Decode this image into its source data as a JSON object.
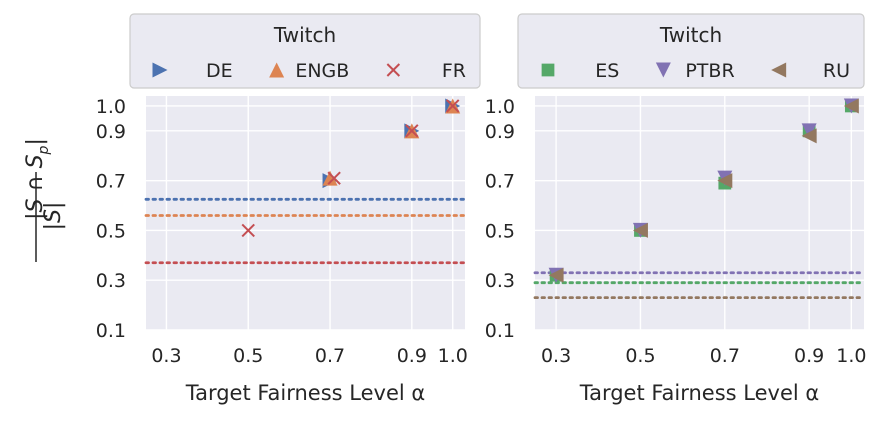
{
  "figure": {
    "ylabel_num": "|S ∩ S",
    "ylabel_sub": "p",
    "ylabel_num_end": "|",
    "ylabel_den": "|S|"
  },
  "chart_data": [
    {
      "type": "scatter",
      "legend_title": "Twitch",
      "legend_position": "top",
      "xlabel": "Target Fairness Level α",
      "xlim": [
        0.25,
        1.03
      ],
      "ylim": [
        0.1,
        1.04
      ],
      "xticks": [
        "0.3",
        "0.5",
        "0.7",
        "0.9",
        "1.0"
      ],
      "yticks": [
        "0.1",
        "0.3",
        "0.5",
        "0.7",
        "0.9",
        "1.0"
      ],
      "grid": true,
      "series": [
        {
          "name": "DE",
          "marker": "triangle-right",
          "color": "#4c72b0",
          "points": [
            {
              "x": 0.7,
              "y": 0.7
            },
            {
              "x": 0.9,
              "y": 0.9
            },
            {
              "x": 1.0,
              "y": 1.0
            }
          ],
          "baseline": 0.625
        },
        {
          "name": "ENGB",
          "marker": "triangle-up",
          "color": "#dd8452",
          "points": [
            {
              "x": 0.7,
              "y": 0.71
            },
            {
              "x": 0.9,
              "y": 0.9
            },
            {
              "x": 1.0,
              "y": 1.0
            }
          ],
          "baseline": 0.56
        },
        {
          "name": "FR",
          "marker": "x",
          "color": "#c44e52",
          "points": [
            {
              "x": 0.5,
              "y": 0.5
            },
            {
              "x": 0.71,
              "y": 0.71
            },
            {
              "x": 0.9,
              "y": 0.9
            },
            {
              "x": 1.0,
              "y": 1.0
            }
          ],
          "baseline": 0.37
        }
      ]
    },
    {
      "type": "scatter",
      "legend_title": "Twitch",
      "legend_position": "top",
      "xlabel": "Target Fairness Level α",
      "xlim": [
        0.25,
        1.03
      ],
      "ylim": [
        0.1,
        1.04
      ],
      "xticks": [
        "0.3",
        "0.5",
        "0.7",
        "0.9",
        "1.0"
      ],
      "yticks": [
        "0.1",
        "0.3",
        "0.5",
        "0.7",
        "0.9",
        "1.0"
      ],
      "grid": true,
      "series": [
        {
          "name": "ES",
          "marker": "square",
          "color": "#55a868",
          "points": [
            {
              "x": 0.3,
              "y": 0.32
            },
            {
              "x": 0.5,
              "y": 0.5
            },
            {
              "x": 0.7,
              "y": 0.69
            },
            {
              "x": 0.9,
              "y": 0.9
            },
            {
              "x": 1.0,
              "y": 1.0
            }
          ],
          "baseline": 0.29
        },
        {
          "name": "PTBR",
          "marker": "triangle-down",
          "color": "#8172b3",
          "points": [
            {
              "x": 0.3,
              "y": 0.32
            },
            {
              "x": 0.5,
              "y": 0.5
            },
            {
              "x": 0.7,
              "y": 0.71
            },
            {
              "x": 0.9,
              "y": 0.9
            },
            {
              "x": 1.0,
              "y": 1.0
            }
          ],
          "baseline": 0.33
        },
        {
          "name": "RU",
          "marker": "triangle-left",
          "color": "#937860",
          "points": [
            {
              "x": 0.3,
              "y": 0.32
            },
            {
              "x": 0.5,
              "y": 0.5
            },
            {
              "x": 0.7,
              "y": 0.7
            },
            {
              "x": 0.9,
              "y": 0.88
            },
            {
              "x": 1.0,
              "y": 1.0
            }
          ],
          "baseline": 0.23
        }
      ]
    }
  ],
  "style": {
    "panel_bg": "#eaeaf2",
    "grid_color": "#ffffff",
    "text_color": "#262626",
    "legend_border": "#cccccc"
  }
}
